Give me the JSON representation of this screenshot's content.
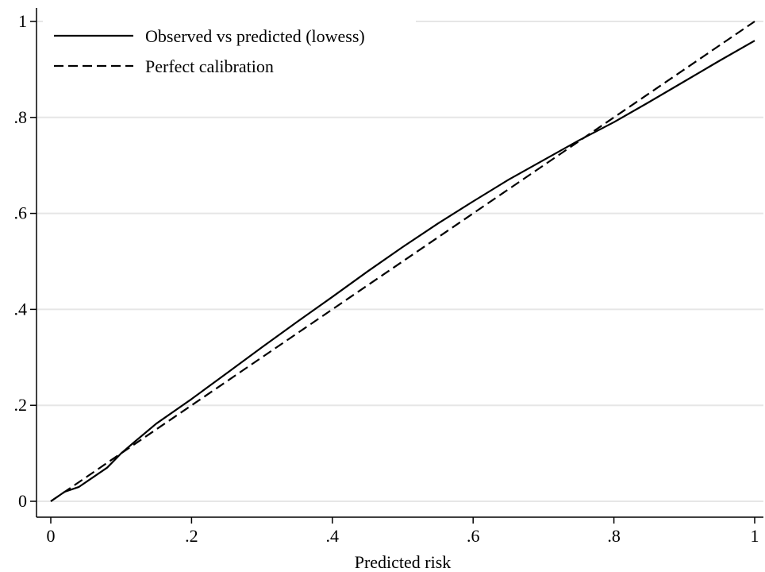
{
  "chart_data": {
    "type": "line",
    "title": "",
    "xlabel": "Predicted risk",
    "ylabel": "",
    "xlim": [
      0,
      1
    ],
    "ylim": [
      0,
      1
    ],
    "xticks": [
      0,
      0.2,
      0.4,
      0.6,
      0.8,
      1
    ],
    "xtick_labels": [
      "0",
      ".2",
      ".4",
      ".6",
      ".8",
      "1"
    ],
    "yticks": [
      0,
      0.2,
      0.4,
      0.6,
      0.8,
      1
    ],
    "ytick_labels": [
      "0",
      ".2",
      ".4",
      ".6",
      ".8",
      "1"
    ],
    "grid": "horizontal",
    "legend_position": "top-left",
    "series": [
      {
        "name": "Observed vs predicted (lowess)",
        "style": "solid",
        "color": "#000000",
        "x": [
          0,
          0.02,
          0.04,
          0.06,
          0.08,
          0.1,
          0.12,
          0.15,
          0.2,
          0.25,
          0.3,
          0.35,
          0.4,
          0.45,
          0.5,
          0.55,
          0.6,
          0.65,
          0.7,
          0.75,
          0.8,
          0.85,
          0.9,
          0.95,
          1.0
        ],
        "y": [
          0,
          0.02,
          0.03,
          0.05,
          0.07,
          0.1,
          0.125,
          0.162,
          0.213,
          0.267,
          0.321,
          0.374,
          0.426,
          0.479,
          0.53,
          0.579,
          0.625,
          0.67,
          0.711,
          0.752,
          0.79,
          0.832,
          0.875,
          0.918,
          0.96
        ]
      },
      {
        "name": "Perfect calibration",
        "style": "dashed",
        "color": "#000000",
        "x": [
          0,
          1
        ],
        "y": [
          0,
          1
        ]
      }
    ]
  }
}
